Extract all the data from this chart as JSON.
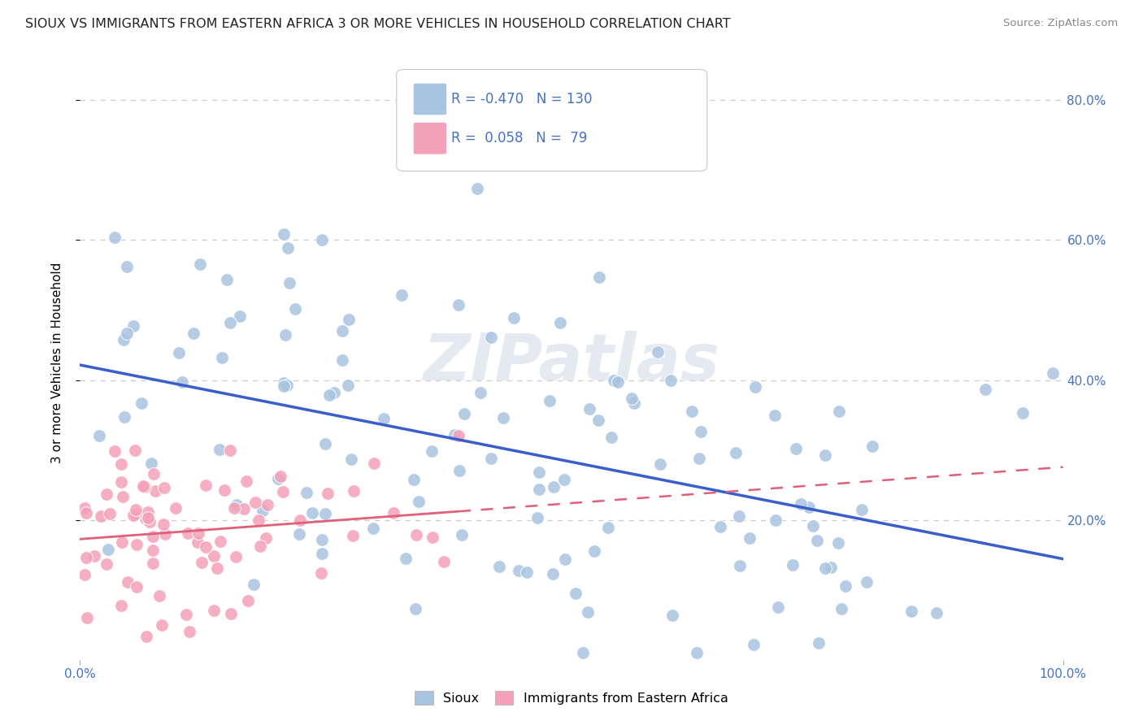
{
  "title": "SIOUX VS IMMIGRANTS FROM EASTERN AFRICA 3 OR MORE VEHICLES IN HOUSEHOLD CORRELATION CHART",
  "source_text": "Source: ZipAtlas.com",
  "ylabel": "3 or more Vehicles in Household",
  "xlim": [
    0.0,
    1.0
  ],
  "ylim": [
    0.0,
    0.85
  ],
  "xtick_labels": [
    "0.0%",
    "100.0%"
  ],
  "ytick_labels": [
    "20.0%",
    "40.0%",
    "60.0%",
    "80.0%"
  ],
  "ytick_positions": [
    0.2,
    0.4,
    0.6,
    0.8
  ],
  "sioux_R": -0.47,
  "sioux_N": 130,
  "eastern_africa_R": 0.058,
  "eastern_africa_N": 79,
  "sioux_color": "#a8c4e0",
  "eastern_africa_color": "#f4a0b8",
  "sioux_line_color": "#3a5fcd",
  "eastern_africa_line_color": "#e0607a",
  "legend_label_sioux": "Sioux",
  "legend_label_eastern": "Immigrants from Eastern Africa",
  "watermark": "ZIPatlas",
  "background_color": "#ffffff",
  "grid_color": "#cccccc"
}
